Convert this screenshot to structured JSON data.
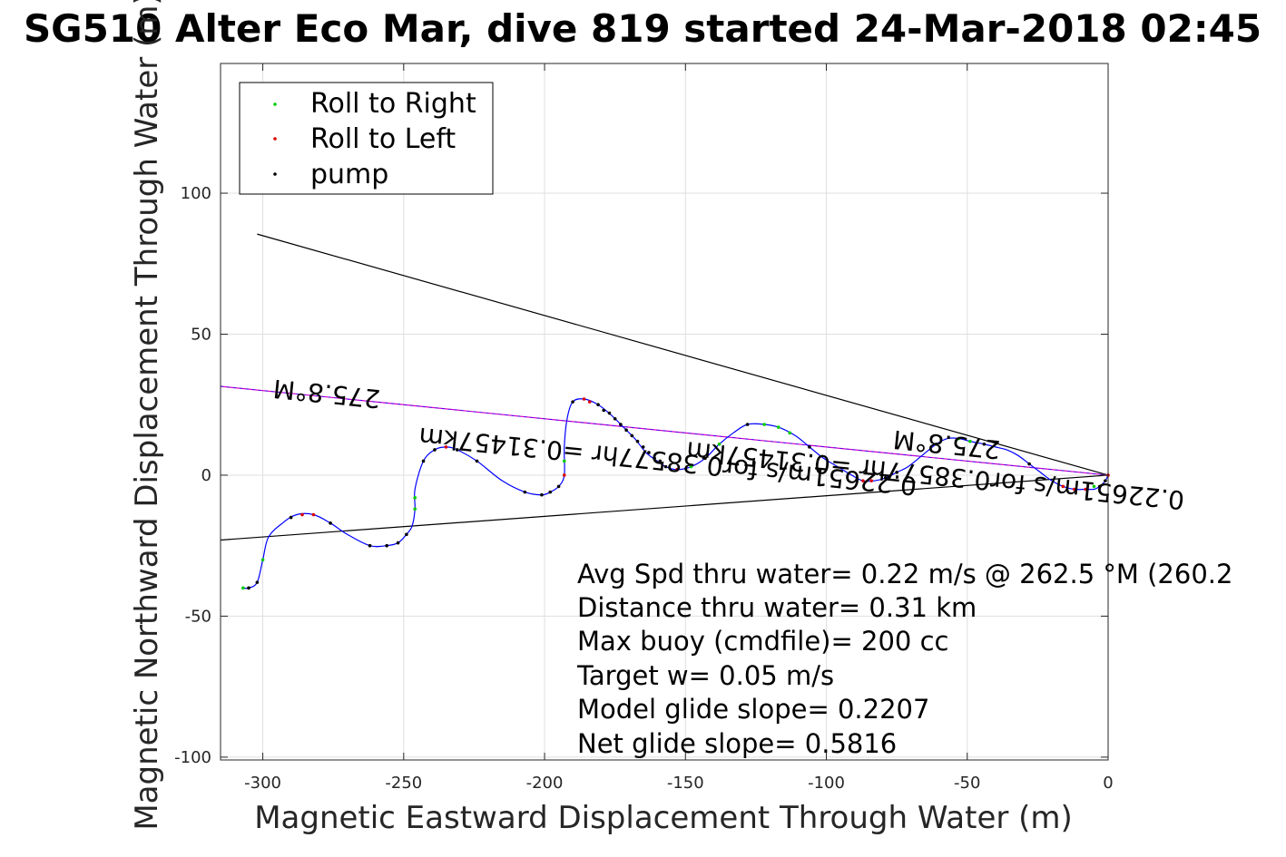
{
  "chart_data": {
    "type": "scatter",
    "title": "SG510 Alter Eco Mar, dive 819 started 24-Mar-2018 02:45",
    "xlabel": "Magnetic Eastward Displacement Through Water (m)",
    "ylabel": "Magnetic Northward Displacement Through Water (m)",
    "xlim": [
      -315,
      0
    ],
    "ylim": [
      -101,
      146
    ],
    "xticks": [
      -300,
      -250,
      -200,
      -150,
      -100,
      -50,
      0
    ],
    "yticks": [
      -100,
      -50,
      0,
      50,
      100
    ],
    "xtick_labels": [
      "-300",
      "-250",
      "-200",
      "-150",
      "-100",
      "-50",
      "0"
    ],
    "ytick_labels": [
      "-100",
      "-50",
      "0",
      "50",
      "100"
    ],
    "grid": true,
    "legend_placement": "top-left",
    "legend": [
      {
        "label": "Roll to Right",
        "color": "#00cc00"
      },
      {
        "label": "Roll to Left",
        "color": "#dd0000"
      },
      {
        "label": "pump",
        "color": "#000000"
      }
    ],
    "track": {
      "name": "track",
      "color": "#0000ff",
      "points": [
        [
          -307,
          -40
        ],
        [
          -305,
          -40
        ],
        [
          -302,
          -38
        ],
        [
          -300,
          -30
        ],
        [
          -298,
          -22
        ],
        [
          -293,
          -17
        ],
        [
          -288,
          -14
        ],
        [
          -282,
          -14
        ],
        [
          -276,
          -17
        ],
        [
          -270,
          -21
        ],
        [
          -262,
          -25
        ],
        [
          -256,
          -25
        ],
        [
          -252,
          -24
        ],
        [
          -249,
          -21
        ],
        [
          -247,
          -18
        ],
        [
          -246,
          -12
        ],
        [
          -246,
          -5
        ],
        [
          -243,
          5
        ],
        [
          -239,
          9
        ],
        [
          -235,
          10
        ],
        [
          -231,
          9
        ],
        [
          -224,
          5
        ],
        [
          -215,
          -2
        ],
        [
          -207,
          -6
        ],
        [
          -201,
          -7
        ],
        [
          -198,
          -6
        ],
        [
          -195,
          -4
        ],
        [
          -193,
          0
        ],
        [
          -193,
          10
        ],
        [
          -192,
          20
        ],
        [
          -190,
          26
        ],
        [
          -186,
          27
        ],
        [
          -181,
          25
        ],
        [
          -176,
          21
        ],
        [
          -172,
          17
        ],
        [
          -168,
          13
        ],
        [
          -164,
          8
        ],
        [
          -160,
          5
        ],
        [
          -157,
          3
        ],
        [
          -153,
          2
        ],
        [
          -148,
          3
        ],
        [
          -143,
          6
        ],
        [
          -138,
          11
        ],
        [
          -133,
          15
        ],
        [
          -128,
          18
        ],
        [
          -122,
          18
        ],
        [
          -117,
          17
        ],
        [
          -111,
          14
        ],
        [
          -106,
          10
        ],
        [
          -101,
          6
        ],
        [
          -96,
          3
        ],
        [
          -91,
          0
        ],
        [
          -87,
          -2
        ],
        [
          -83,
          -2
        ],
        [
          -79,
          -1
        ],
        [
          -75,
          1
        ],
        [
          -71,
          3
        ],
        [
          -66,
          7
        ],
        [
          -61,
          11
        ],
        [
          -57,
          13
        ],
        [
          -53,
          13
        ],
        [
          -49,
          12
        ],
        [
          -44,
          11
        ],
        [
          -40,
          10
        ],
        [
          -36,
          9
        ],
        [
          -32,
          7
        ],
        [
          -28,
          4
        ],
        [
          -24,
          1
        ],
        [
          -20,
          -2
        ],
        [
          -16,
          -4
        ],
        [
          -12,
          -5
        ],
        [
          -8,
          -5
        ],
        [
          -5,
          -5
        ],
        [
          -3,
          -4
        ],
        [
          -1,
          -2
        ],
        [
          0,
          0
        ]
      ]
    },
    "series": [
      {
        "name": "Roll to Right",
        "color": "#00cc00",
        "points": [
          [
            -307,
            -40
          ],
          [
            -300,
            -30
          ],
          [
            -246,
            -8
          ],
          [
            -246,
            -12
          ],
          [
            -193,
            5
          ],
          [
            -148,
            3
          ],
          [
            -138,
            11
          ],
          [
            -122,
            18
          ],
          [
            -117,
            17
          ],
          [
            -113,
            15
          ],
          [
            -53,
            13
          ],
          [
            -49,
            12
          ],
          [
            -5,
            -4
          ]
        ]
      },
      {
        "name": "Roll to Left",
        "color": "#dd0000",
        "points": [
          [
            -286,
            -14
          ],
          [
            -282,
            -14
          ],
          [
            -235,
            10
          ],
          [
            -193,
            0
          ],
          [
            -186,
            27
          ],
          [
            -184,
            26
          ],
          [
            -153,
            2
          ],
          [
            -87,
            -2
          ],
          [
            -84,
            -2
          ],
          [
            -16,
            -4
          ],
          [
            -12,
            -5
          ],
          [
            -8,
            -5
          ],
          [
            0,
            0
          ]
        ]
      },
      {
        "name": "pump",
        "color": "#000000",
        "points": [
          [
            -305,
            -40
          ],
          [
            -302,
            -38
          ],
          [
            -290,
            -15
          ],
          [
            -276,
            -17
          ],
          [
            -262,
            -25
          ],
          [
            -256,
            -25
          ],
          [
            -252,
            -24
          ],
          [
            -249,
            -21
          ],
          [
            -243,
            5
          ],
          [
            -239,
            9
          ],
          [
            -231,
            9
          ],
          [
            -224,
            5
          ],
          [
            -207,
            -6
          ],
          [
            -201,
            -7
          ],
          [
            -198,
            -6
          ],
          [
            -195,
            -4
          ],
          [
            -190,
            26
          ],
          [
            -181,
            25
          ],
          [
            -179,
            23
          ],
          [
            -177,
            22
          ],
          [
            -175,
            20
          ],
          [
            -173,
            18
          ],
          [
            -171,
            16
          ],
          [
            -169,
            14
          ],
          [
            -167,
            12
          ],
          [
            -165,
            10
          ],
          [
            -163,
            8
          ],
          [
            -161,
            6
          ],
          [
            -159,
            5
          ],
          [
            -157,
            3
          ],
          [
            -143,
            6
          ],
          [
            -128,
            18
          ],
          [
            -106,
            10
          ],
          [
            -79,
            -1
          ],
          [
            -75,
            1
          ],
          [
            -61,
            11
          ],
          [
            -44,
            11
          ],
          [
            -28,
            4
          ],
          [
            -3,
            -4
          ],
          [
            -1,
            -2
          ]
        ]
      }
    ],
    "lines": [
      {
        "name": "bound-upper",
        "color": "#000000",
        "from": [
          -302,
          85.5
        ],
        "to": [
          0,
          0
        ]
      },
      {
        "name": "bound-lower",
        "color": "#000000",
        "from": [
          -315,
          -23
        ],
        "to": [
          0,
          0
        ]
      },
      {
        "name": "heading-line",
        "color": "#cc00cc",
        "from": [
          -315,
          31.5
        ],
        "to": [
          0,
          0
        ]
      },
      {
        "name": "heading-line-blue",
        "color": "#0000ff",
        "from": [
          -315,
          31.5
        ],
        "to": [
          0,
          0
        ]
      }
    ],
    "rotated_labels": [
      {
        "text": "275.8°M",
        "x": -277,
        "y": 32
      },
      {
        "text": "0.22651m/s for0.38577hr =0.31457km",
        "x": -156,
        "y": 8
      },
      {
        "text": "275.8°M",
        "x": -57,
        "y": 14
      },
      {
        "text": "0.22651m/s for0.38577hr =0.31457km",
        "x": -61,
        "y": 3
      }
    ],
    "annotations": [
      "Avg Spd thru water=  0.22 m/s @ 262.5 °M (260.2",
      "Distance thru water=  0.31 km",
      "Max buoy (cmdfile)= 200 cc",
      "Target w= 0.05 m/s",
      "Model glide slope= 0.2207",
      "Net glide slope= 0.5816"
    ]
  }
}
